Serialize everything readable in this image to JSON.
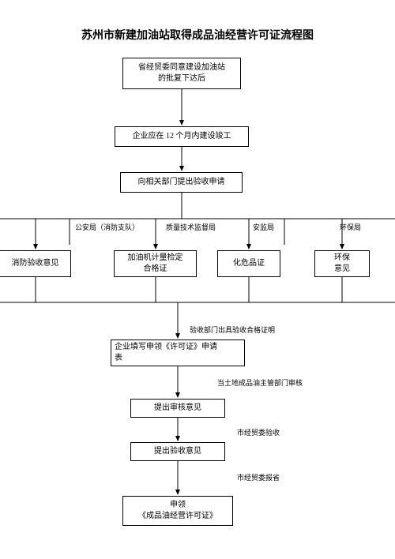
{
  "title": "苏州市新建加油站取得成品油经营许可证流程图",
  "title_fontsize": 14,
  "box_fontsize": 10,
  "label_fontsize": 9,
  "line_color": "#000000",
  "bg_color": "#ffffff",
  "nodes": {
    "n1": "省经贸委同意建设加油站\n的批复下达后",
    "n2": "企业应在 12 个月内建设竣工",
    "n3": "向相关部门提出验收申请",
    "b1": "消防验收意见",
    "b2": "加油机计量检定\n合格证",
    "b3": "化危品证",
    "b4": "环保\n意见",
    "n4": "企业填写申领《许可证》申请\n表",
    "n5": "提出审核意见",
    "n6": "提出验收意见",
    "n7": "申领\n《成品油经营许可证》"
  },
  "labels": {
    "l1": "公安局（消防支队）",
    "l2": "质量技术监督局",
    "l3": "安监局",
    "l4": "环保局",
    "l5": "验收部门出具验收合格证明",
    "l6": "当土地成品油主管部门审核",
    "l7": "市经贸委验收",
    "l8": "市经贸委报省"
  }
}
